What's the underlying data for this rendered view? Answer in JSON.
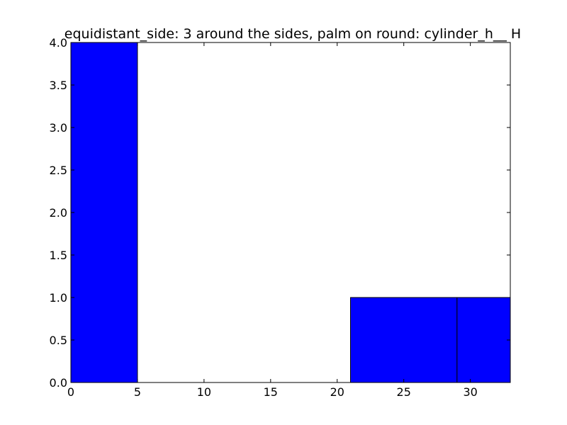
{
  "chart_data": {
    "type": "bar",
    "title": "equidistant_side: 3 around the sides, palm on round: cylinder_h__ H",
    "xlabel": "",
    "ylabel": "",
    "xlim": [
      0,
      33
    ],
    "ylim": [
      0,
      4.0
    ],
    "bars": [
      {
        "x0": 0,
        "x1": 5,
        "value": 4
      },
      {
        "x0": 21,
        "x1": 29,
        "value": 1
      },
      {
        "x0": 29,
        "x1": 33,
        "value": 1
      }
    ],
    "x_ticks": [
      {
        "value": 0,
        "label": "0"
      },
      {
        "value": 5,
        "label": "5"
      },
      {
        "value": 10,
        "label": "10"
      },
      {
        "value": 15,
        "label": "15"
      },
      {
        "value": 20,
        "label": "20"
      },
      {
        "value": 25,
        "label": "25"
      },
      {
        "value": 30,
        "label": "30"
      }
    ],
    "y_ticks": [
      {
        "value": 0.0,
        "label": "0.0"
      },
      {
        "value": 0.5,
        "label": "0.5"
      },
      {
        "value": 1.0,
        "label": "1.0"
      },
      {
        "value": 1.5,
        "label": "1.5"
      },
      {
        "value": 2.0,
        "label": "2.0"
      },
      {
        "value": 2.5,
        "label": "2.5"
      },
      {
        "value": 3.0,
        "label": "3.0"
      },
      {
        "value": 3.5,
        "label": "3.5"
      },
      {
        "value": 4.0,
        "label": "4.0"
      }
    ],
    "grid": false,
    "bar_color": "#0000ff",
    "edge_color": "#000000"
  }
}
